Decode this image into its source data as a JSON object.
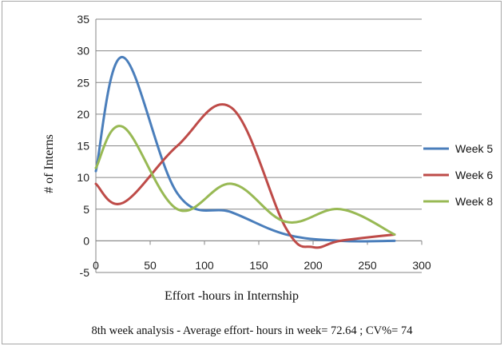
{
  "chart_data": {
    "type": "line",
    "smooth": true,
    "xlabel": "Effort -hours   in Internship",
    "ylabel": "# of Interns",
    "xlim": [
      0,
      300
    ],
    "ylim": [
      -5,
      35
    ],
    "xticks": [
      0,
      50,
      100,
      150,
      200,
      250,
      300
    ],
    "yticks": [
      -5,
      0,
      5,
      10,
      15,
      20,
      25,
      30,
      35
    ],
    "xtick_labels": [
      "0",
      "50",
      "100",
      "150",
      "200",
      "250",
      "300"
    ],
    "ytick_labels": [
      "-5",
      "0",
      "5",
      "10",
      "15",
      "20",
      "25",
      "30",
      "35"
    ],
    "grid": "horizontal",
    "legend_position": "right",
    "series": [
      {
        "name": "Week 5",
        "color": "#4a7ebb",
        "x": [
          0,
          25,
          75,
          125,
          175,
          225,
          275
        ],
        "y": [
          11,
          29,
          7.5,
          4.5,
          1,
          0,
          0
        ]
      },
      {
        "name": "Week 6",
        "color": "#be4b48",
        "x": [
          0,
          25,
          75,
          125,
          175,
          200,
          225,
          275
        ],
        "y": [
          9,
          6,
          15,
          21,
          2,
          -1,
          0,
          1
        ]
      },
      {
        "name": "Week 8",
        "color": "#98b954",
        "x": [
          0,
          25,
          75,
          125,
          175,
          225,
          275
        ],
        "y": [
          11.5,
          18,
          5,
          9,
          3,
          5,
          1
        ]
      }
    ]
  },
  "caption": "8th week analysis - Average effort- hours in  week= 72.64 ; CV%=  74"
}
